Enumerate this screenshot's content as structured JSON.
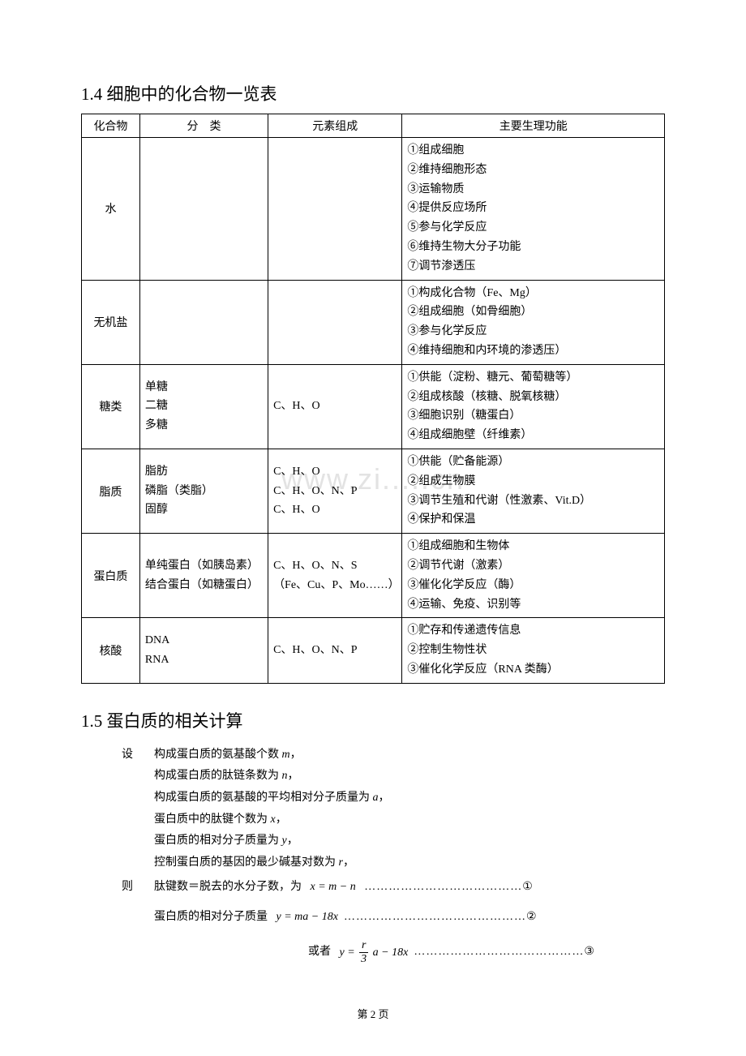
{
  "section1": {
    "title": "1.4 细胞中的化合物一览表",
    "headers": [
      "化合物",
      "分　类",
      "元素组成",
      "主要生理功能"
    ],
    "rows": [
      {
        "compound": "水",
        "category": "",
        "elements": "",
        "functions": "①组成细胞\n②维持细胞形态\n③运输物质\n④提供反应场所\n⑤参与化学反应\n⑥维持生物大分子功能\n⑦调节渗透压"
      },
      {
        "compound": "无机盐",
        "category": "",
        "elements": "",
        "functions": "①构成化合物（Fe、Mg）\n②组成细胞（如骨细胞）\n③参与化学反应\n④维持细胞和内环境的渗透压）"
      },
      {
        "compound": "糖类",
        "category": "单糖\n二糖\n多糖",
        "elements": "C、H、O",
        "functions": "①供能（淀粉、糖元、葡萄糖等）\n②组成核酸（核糖、脱氧核糖）\n③细胞识别（糖蛋白）\n④组成细胞壁（纤维素）"
      },
      {
        "compound": "脂质",
        "category": "脂肪\n磷脂（类脂）\n固醇",
        "elements": "C、H、O\nC、H、O、N、P\nC、H、O",
        "functions": "①供能（贮备能源）\n②组成生物膜\n③调节生殖和代谢（性激素、Vit.D）\n④保护和保温"
      },
      {
        "compound": "蛋白质",
        "category": "单纯蛋白（如胰岛素）\n结合蛋白（如糖蛋白）",
        "elements": "C、H、O、N、S\n（Fe、Cu、P、Mo……）",
        "functions": "①组成细胞和生物体\n②调节代谢（激素）\n③催化化学反应（酶）\n④运输、免疫、识别等"
      },
      {
        "compound": "核酸",
        "category": "DNA\nRNA",
        "elements": "C、H、O、N、P",
        "functions": "①贮存和传递遗传信息\n②控制生物性状\n③催化化学反应（RNA 类酶）"
      }
    ]
  },
  "section2": {
    "title": "1.5 蛋白质的相关计算",
    "setup_label": "设",
    "setup_lines": [
      "构成蛋白质的氨基酸个数 m，",
      "构成蛋白质的肽链条数为 n，",
      "构成蛋白质的氨基酸的平均相对分子质量为 a，",
      "蛋白质中的肽键个数为 x，",
      "蛋白质的相对分子质量为 y，",
      "控制蛋白质的基因的最少碱基对数为 r，"
    ],
    "then_label": "则",
    "formula1_text": "肽键数＝脱去的水分子数，为",
    "formula1_expr": "x = m − n",
    "formula1_dots": "…………………………………①",
    "formula2_text": "蛋白质的相对分子质量",
    "formula2_expr": "y = ma − 18x",
    "formula2_dots": "………………………………………②",
    "formula3_text": "或者",
    "formula3_dots": "……………………………………③"
  },
  "watermark_text": "www.zi.....cn",
  "page_number": "第 2 页"
}
